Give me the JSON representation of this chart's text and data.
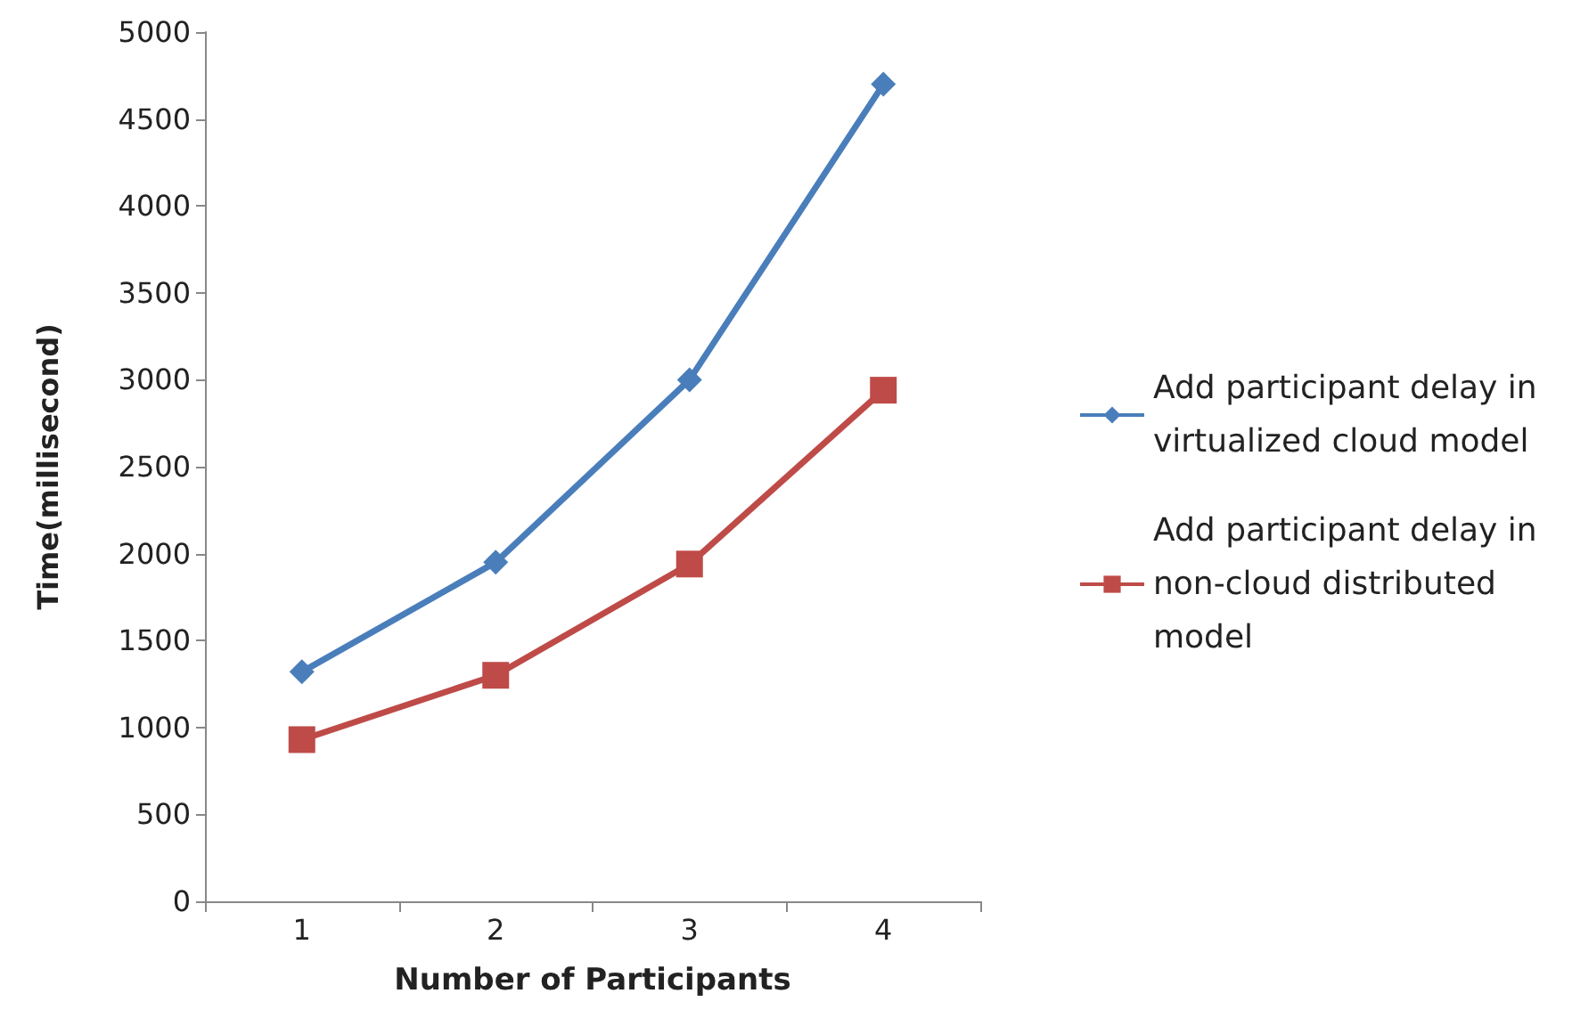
{
  "chart_data": {
    "type": "line",
    "xlabel": "Number of Participants",
    "ylabel": "Time(millisecond)",
    "categories": [
      "1",
      "2",
      "3",
      "4"
    ],
    "series": [
      {
        "name": "Add participant delay in virtualized cloud model",
        "color": "#4a7ebb",
        "marker": "diamond",
        "values": [
          1320,
          1950,
          3000,
          4700
        ]
      },
      {
        "name": "Add participant delay in non-cloud distributed model",
        "color": "#be4b48",
        "marker": "square",
        "values": [
          930,
          1300,
          1940,
          2940
        ]
      }
    ],
    "ylim": [
      0,
      5000
    ],
    "yticks": [
      0,
      500,
      1000,
      1500,
      2000,
      2500,
      3000,
      3500,
      4000,
      4500,
      5000
    ],
    "grid": false,
    "legend": "right"
  }
}
